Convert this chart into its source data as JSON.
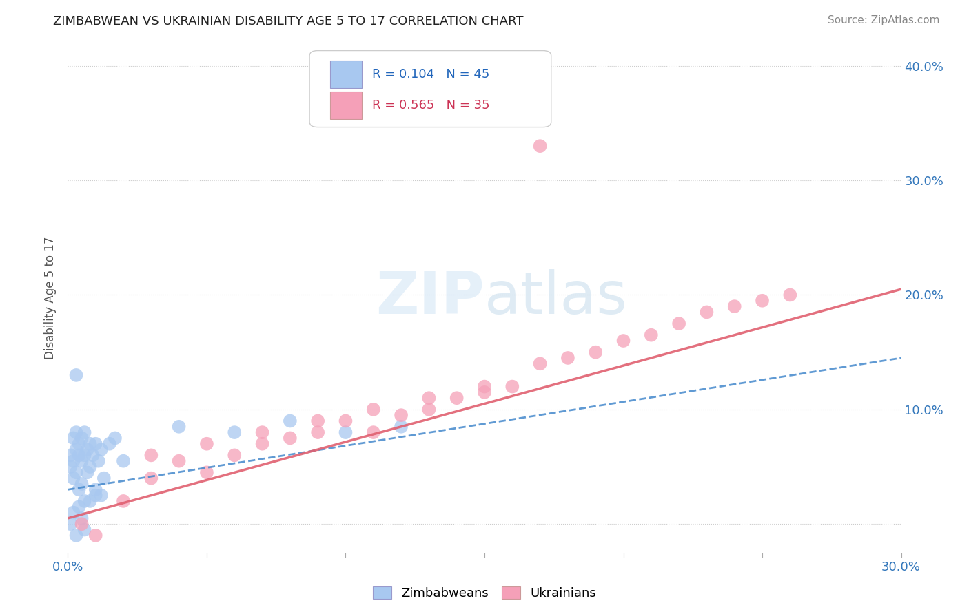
{
  "title": "ZIMBABWEAN VS UKRAINIAN DISABILITY AGE 5 TO 17 CORRELATION CHART",
  "source": "Source: ZipAtlas.com",
  "ylabel": "Disability Age 5 to 17",
  "xlim": [
    0.0,
    0.3
  ],
  "ylim": [
    -0.025,
    0.42
  ],
  "xtick_pos": [
    0.0,
    0.05,
    0.1,
    0.15,
    0.2,
    0.25,
    0.3
  ],
  "xtick_labels": [
    "0.0%",
    "",
    "",
    "",
    "",
    "",
    "30.0%"
  ],
  "ytick_positions": [
    0.0,
    0.1,
    0.2,
    0.3,
    0.4
  ],
  "ytick_labels": [
    "",
    "10.0%",
    "20.0%",
    "30.0%",
    "40.0%"
  ],
  "zim_color": "#a8c8f0",
  "ukr_color": "#f5a0b8",
  "zim_line_color": "#4488cc",
  "ukr_line_color": "#e06070",
  "R_zim": 0.104,
  "N_zim": 45,
  "R_ukr": 0.565,
  "N_ukr": 35,
  "background_color": "#ffffff",
  "zim_x": [
    0.001,
    0.001,
    0.002,
    0.002,
    0.002,
    0.003,
    0.003,
    0.003,
    0.004,
    0.004,
    0.004,
    0.005,
    0.005,
    0.005,
    0.006,
    0.006,
    0.006,
    0.007,
    0.007,
    0.008,
    0.008,
    0.009,
    0.01,
    0.01,
    0.011,
    0.012,
    0.013,
    0.015,
    0.017,
    0.02,
    0.001,
    0.002,
    0.003,
    0.004,
    0.005,
    0.006,
    0.008,
    0.01,
    0.012,
    0.04,
    0.06,
    0.08,
    0.1,
    0.12,
    0.003
  ],
  "zim_y": [
    0.06,
    0.05,
    0.075,
    0.055,
    0.04,
    0.065,
    0.08,
    0.045,
    0.07,
    0.06,
    0.03,
    0.055,
    0.075,
    0.035,
    0.06,
    0.08,
    0.02,
    0.065,
    0.045,
    0.07,
    0.05,
    0.06,
    0.07,
    0.025,
    0.055,
    0.065,
    0.04,
    0.07,
    0.075,
    0.055,
    0.0,
    0.01,
    -0.01,
    0.015,
    0.005,
    -0.005,
    0.02,
    0.03,
    0.025,
    0.085,
    0.08,
    0.09,
    0.08,
    0.085,
    0.13
  ],
  "ukr_x": [
    0.005,
    0.01,
    0.02,
    0.03,
    0.04,
    0.05,
    0.06,
    0.07,
    0.08,
    0.09,
    0.1,
    0.11,
    0.12,
    0.13,
    0.14,
    0.15,
    0.16,
    0.17,
    0.18,
    0.19,
    0.2,
    0.21,
    0.22,
    0.23,
    0.24,
    0.25,
    0.26,
    0.03,
    0.05,
    0.07,
    0.09,
    0.11,
    0.13,
    0.15,
    0.17
  ],
  "ukr_y": [
    0.0,
    -0.01,
    0.02,
    0.04,
    0.055,
    0.045,
    0.06,
    0.07,
    0.075,
    0.08,
    0.09,
    0.08,
    0.095,
    0.1,
    0.11,
    0.115,
    0.12,
    0.14,
    0.145,
    0.15,
    0.16,
    0.165,
    0.175,
    0.185,
    0.19,
    0.195,
    0.2,
    0.06,
    0.07,
    0.08,
    0.09,
    0.1,
    0.11,
    0.12,
    0.33
  ],
  "zim_trendline": [
    0.0,
    0.3,
    0.03,
    0.145
  ],
  "ukr_trendline": [
    0.0,
    0.3,
    0.005,
    0.205
  ]
}
